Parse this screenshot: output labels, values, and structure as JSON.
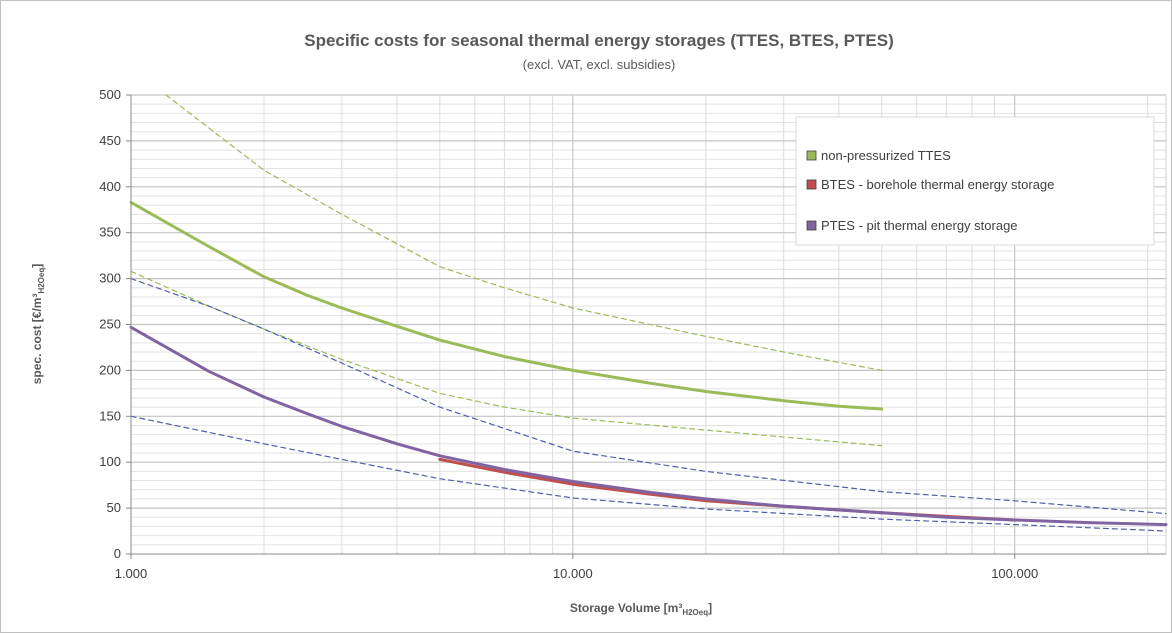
{
  "chart_data": {
    "type": "line",
    "title": "Specific costs for seasonal thermal energy storages (TTES, BTES, PTES)",
    "subtitle": "(excl. VAT, excl. subsidies)",
    "xlabel": {
      "main": "Storage Volume [m³",
      "sub": "H2Oeq",
      "end": "]"
    },
    "ylabel": {
      "main": "spec. cost [€/m³",
      "sub": "H2Oeq",
      "end": "]"
    },
    "x_scale": "log",
    "xlim": [
      1000,
      220000
    ],
    "ylim": [
      0,
      500
    ],
    "x_ticks": [
      {
        "value": 1000,
        "label": "1.000"
      },
      {
        "value": 10000,
        "label": "10.000"
      },
      {
        "value": 100000,
        "label": "100.000"
      }
    ],
    "y_ticks": [
      {
        "value": 0,
        "label": "0"
      },
      {
        "value": 50,
        "label": "50"
      },
      {
        "value": 100,
        "label": "100"
      },
      {
        "value": 150,
        "label": "150"
      },
      {
        "value": 200,
        "label": "200"
      },
      {
        "value": 250,
        "label": "250"
      },
      {
        "value": 300,
        "label": "300"
      },
      {
        "value": 350,
        "label": "350"
      },
      {
        "value": 400,
        "label": "400"
      },
      {
        "value": 450,
        "label": "450"
      },
      {
        "value": 500,
        "label": "500"
      }
    ],
    "grid": true,
    "legend_position": "top-right",
    "series": [
      {
        "name": "non-pressurized TTES",
        "color": "#9bbb59",
        "style": "solid",
        "x": [
          1000,
          1500,
          2000,
          2500,
          3000,
          4000,
          5000,
          7000,
          10000,
          15000,
          20000,
          30000,
          40000,
          50000
        ],
        "values": [
          383,
          335,
          302,
          282,
          268,
          248,
          233,
          215,
          200,
          186,
          177,
          167,
          161,
          158
        ]
      },
      {
        "name": "BTES - borehole thermal energy storage",
        "color": "#c0504d",
        "style": "solid",
        "x": [
          5000,
          7000,
          10000,
          15000,
          20000,
          30000,
          50000,
          70000,
          100000
        ],
        "values": [
          103,
          89,
          76,
          65,
          58,
          52,
          45,
          41,
          37
        ]
      },
      {
        "name": "PTES - pit thermal energy storage",
        "color": "#8064a2",
        "style": "solid",
        "x": [
          1000,
          1500,
          2000,
          2500,
          3000,
          4000,
          5000,
          7000,
          10000,
          15000,
          20000,
          30000,
          50000,
          70000,
          100000,
          150000,
          220000
        ],
        "values": [
          247,
          199,
          171,
          153,
          139,
          120,
          107,
          92,
          79,
          67,
          60,
          52,
          45,
          40,
          37,
          34,
          32
        ]
      },
      {
        "name": "",
        "color": "#9bbb59",
        "style": "dashed",
        "x": [
          1200,
          2000,
          3000,
          5000,
          7000,
          10000,
          20000,
          30000,
          50000
        ],
        "values": [
          500,
          418,
          370,
          313,
          290,
          268,
          237,
          220,
          200
        ]
      },
      {
        "name": "",
        "color": "#9bbb59",
        "style": "dashed",
        "x": [
          1000,
          1500,
          2000,
          3000,
          5000,
          7000,
          10000,
          20000,
          50000
        ],
        "values": [
          308,
          270,
          245,
          212,
          175,
          160,
          148,
          135,
          118
        ]
      },
      {
        "name": "",
        "color": "#4f5fa8",
        "style": "dashed",
        "x": [
          1000,
          1500,
          2000,
          3000,
          5000,
          10000,
          20000,
          50000,
          100000,
          220000
        ],
        "values": [
          300,
          270,
          245,
          208,
          160,
          112,
          90,
          68,
          58,
          44
        ]
      },
      {
        "name": "",
        "color": "#4f5fa8",
        "style": "dashed",
        "x": [
          1000,
          2000,
          3000,
          5000,
          10000,
          20000,
          50000,
          100000,
          220000
        ],
        "values": [
          150,
          120,
          103,
          82,
          61,
          49,
          38,
          32,
          25
        ]
      }
    ]
  }
}
